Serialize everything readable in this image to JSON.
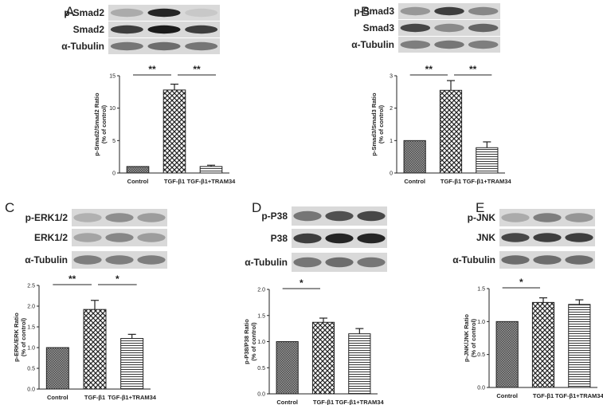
{
  "panels": [
    {
      "letter": "A",
      "blot_labels": [
        "p-Smad2",
        "Smad2",
        "α-Tubulin"
      ],
      "ylabel_lines": [
        "p-Smad2/Smad2 Ratio",
        "(% of control)"
      ]
    },
    {
      "letter": "B",
      "blot_labels": [
        "p-Smad3",
        "Smad3",
        "α-Tubulin"
      ],
      "ylabel_lines": [
        "p-Smad3/Smad3 Ratio",
        "(% of control)"
      ]
    },
    {
      "letter": "C",
      "blot_labels": [
        "p-ERK1/2",
        "ERK1/2",
        "α-Tubulin"
      ],
      "ylabel_lines": [
        "p-ERK/ERK Ratio",
        "(% of control)"
      ]
    },
    {
      "letter": "D",
      "blot_labels": [
        "p-P38",
        "P38",
        "α-Tubulin"
      ],
      "ylabel_lines": [
        "p-P38/P38 Ratio",
        "(% of control)"
      ]
    },
    {
      "letter": "E",
      "blot_labels": [
        "p-JNK",
        "JNK",
        "α-Tubulin"
      ],
      "ylabel_lines": [
        "p-JNK/JNK Ratio",
        "(% of control)"
      ]
    }
  ],
  "chart_data": [
    {
      "type": "bar",
      "panel": "A",
      "categories": [
        "Control",
        "TGF-β1",
        "TGF-β1+TRAM34"
      ],
      "values": [
        1.0,
        12.8,
        1.0
      ],
      "errors": [
        0,
        0.9,
        0.2
      ],
      "ylim": [
        0,
        15
      ],
      "yticks": [
        "0",
        "5",
        "10",
        "15"
      ],
      "significance": [
        {
          "from": 0,
          "to": 1,
          "label": "**"
        },
        {
          "from": 1,
          "to": 2,
          "label": "**"
        }
      ]
    },
    {
      "type": "bar",
      "panel": "B",
      "categories": [
        "Control",
        "TGF-β1",
        "TGF-β1+TRAM34"
      ],
      "values": [
        1.0,
        2.55,
        0.78
      ],
      "errors": [
        0,
        0.3,
        0.18
      ],
      "ylim": [
        0,
        3
      ],
      "yticks": [
        "0",
        "1",
        "2",
        "3"
      ],
      "significance": [
        {
          "from": 0,
          "to": 1,
          "label": "**"
        },
        {
          "from": 1,
          "to": 2,
          "label": "**"
        }
      ]
    },
    {
      "type": "bar",
      "panel": "C",
      "categories": [
        "Control",
        "TGF-β1",
        "TGF-β1+TRAM34"
      ],
      "values": [
        1.0,
        1.92,
        1.22
      ],
      "errors": [
        0,
        0.22,
        0.1
      ],
      "ylim": [
        0,
        2.5
      ],
      "yticks": [
        "0.0",
        "0.5",
        "1.0",
        "1.5",
        "2.0",
        "2.5"
      ],
      "significance": [
        {
          "from": 0,
          "to": 1,
          "label": "**"
        },
        {
          "from": 1,
          "to": 2,
          "label": "*"
        }
      ]
    },
    {
      "type": "bar",
      "panel": "D",
      "categories": [
        "Control",
        "TGF-β1",
        "TGF-β1+TRAM34"
      ],
      "values": [
        1.0,
        1.37,
        1.15
      ],
      "errors": [
        0,
        0.08,
        0.1
      ],
      "ylim": [
        0,
        2.0
      ],
      "yticks": [
        "0.0",
        "0.5",
        "1.0",
        "1.5",
        "2.0"
      ],
      "significance": [
        {
          "from": 0,
          "to": 1,
          "label": "*"
        }
      ]
    },
    {
      "type": "bar",
      "panel": "E",
      "categories": [
        "Control",
        "TGF-β1",
        "TGF-β1+TRAM34"
      ],
      "values": [
        1.0,
        1.29,
        1.26
      ],
      "errors": [
        0,
        0.07,
        0.07
      ],
      "ylim": [
        0,
        1.5
      ],
      "yticks": [
        "0.0",
        "0.5",
        "1.0",
        "1.5"
      ],
      "significance": [
        {
          "from": 0,
          "to": 1,
          "label": "*"
        }
      ]
    }
  ]
}
